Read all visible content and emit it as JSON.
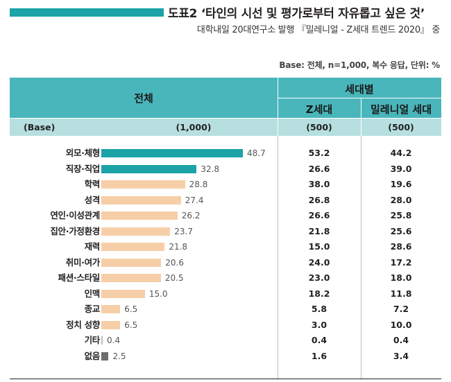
{
  "header": {
    "title": "도표2 ‘타인의 시선 및 평가로부터 자유롭고 싶은 것’",
    "subtitle": "대학내일 20대연구소 발행 『밀레니얼 - Z세대 트렌드 2020』 중",
    "base_note": "Base: 전체, n=1,000, 복수 응답, 단위: %"
  },
  "table": {
    "col_total": "전체",
    "col_generation": "세대별",
    "col_z": "Z세대",
    "col_millennial": "밀레니얼 세대",
    "base_label": "(Base)",
    "base_total": "(1,000)",
    "base_z": "(500)",
    "base_millennial": "(500)"
  },
  "colors": {
    "accent": "#1ba3a8",
    "highlight_bar": "#1ba3a8",
    "normal_bar": "#f6cfa8",
    "minor_bar": "#bfbfbf",
    "minor_bar_dark": "#6d6e71",
    "header_bg": "#49b6bb",
    "subheader_bg": "#b7dfe0"
  },
  "chart_data": {
    "type": "bar",
    "orientation": "horizontal",
    "categories": [
      "외모·체형",
      "직장·직업",
      "학력",
      "성격",
      "연인·이성관계",
      "집안·가정환경",
      "재력",
      "취미·여가",
      "패션·스타일",
      "인맥",
      "종교",
      "정치 성향",
      "기타",
      "없음"
    ],
    "series": [
      {
        "name": "전체",
        "values": [
          48.7,
          32.8,
          28.8,
          27.4,
          26.2,
          23.7,
          21.8,
          20.6,
          20.5,
          15.0,
          6.5,
          6.5,
          0.4,
          2.5
        ]
      },
      {
        "name": "Z세대",
        "values": [
          53.2,
          26.6,
          38.0,
          26.8,
          26.6,
          21.8,
          15.0,
          24.0,
          23.0,
          18.2,
          5.8,
          3.0,
          0.4,
          1.6
        ]
      },
      {
        "name": "밀레니얼 세대",
        "values": [
          44.2,
          39.0,
          19.6,
          28.0,
          25.8,
          25.6,
          28.6,
          17.2,
          18.0,
          11.8,
          7.2,
          10.0,
          0.4,
          3.4
        ]
      }
    ],
    "display": {
      "total": [
        "48.7",
        "32.8",
        "28.8",
        "27.4",
        "26.2",
        "23.7",
        "21.8",
        "20.6",
        "20.5",
        "15.0",
        "6.5",
        "6.5",
        "0.4",
        "2.5"
      ],
      "z": [
        "53.2",
        "26.6",
        "38.0",
        "26.8",
        "26.6",
        "21.8",
        "15.0",
        "24.0",
        "23.0",
        "18.2",
        "5.8",
        "3.0",
        "0.4",
        "1.6"
      ],
      "millennial": [
        "44.2",
        "39.0",
        "19.6",
        "28.0",
        "25.8",
        "25.6",
        "28.6",
        "17.2",
        "18.0",
        "11.8",
        "7.2",
        "10.0",
        "0.4",
        "3.4"
      ]
    },
    "bar_styles": [
      "highlight",
      "highlight",
      "normal",
      "normal",
      "normal",
      "normal",
      "normal",
      "normal",
      "normal",
      "normal",
      "normal",
      "normal",
      "minor",
      "minor-dark"
    ],
    "xlim": [
      0,
      60
    ],
    "grid": false
  }
}
